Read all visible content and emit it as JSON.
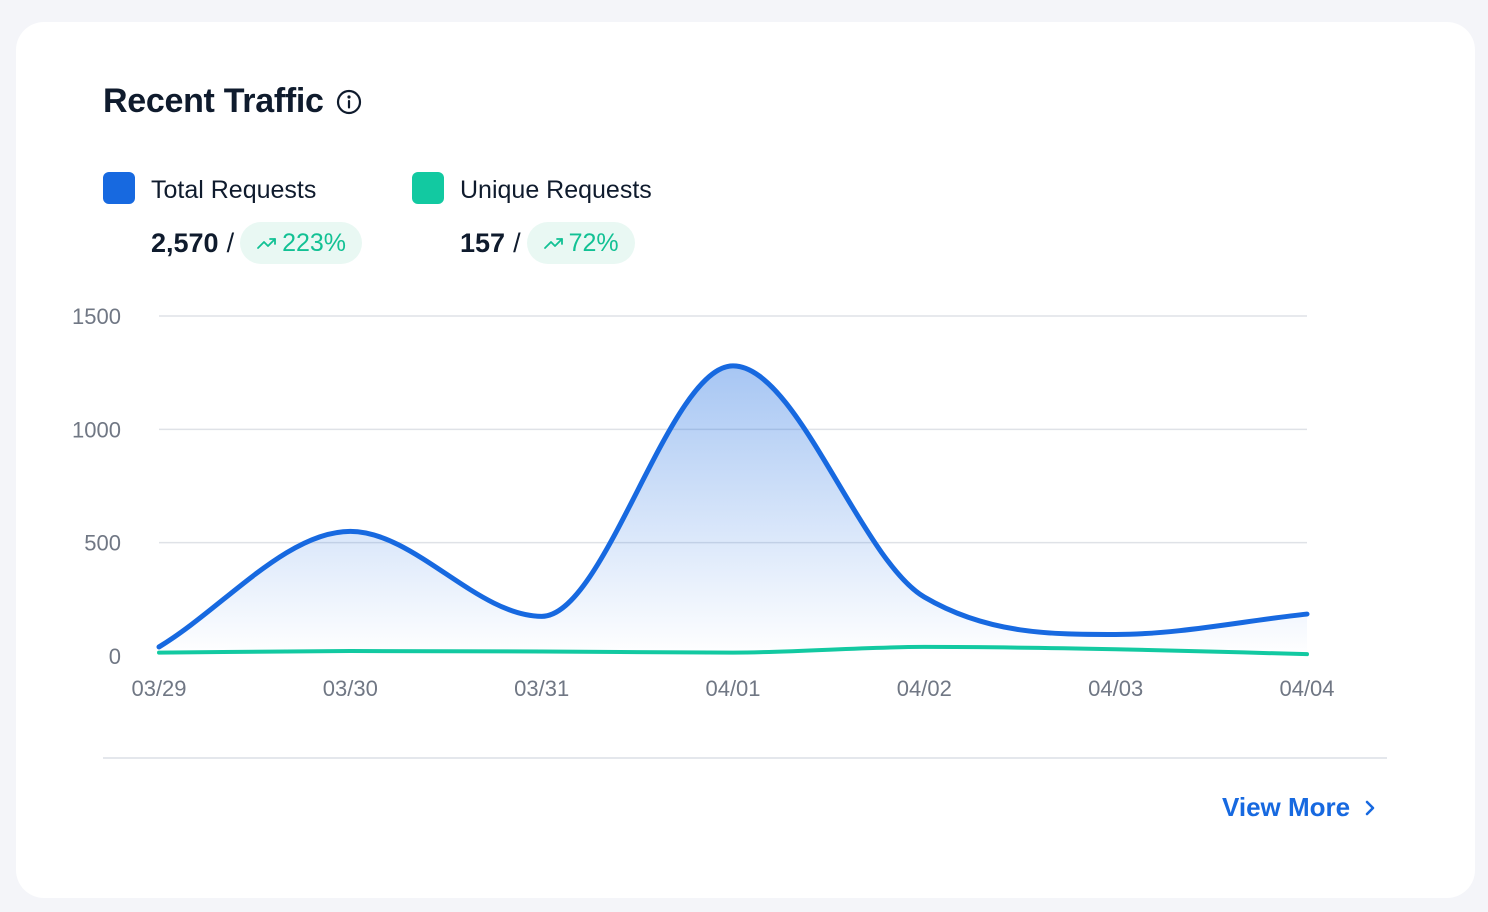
{
  "card": {
    "title": "Recent Traffic",
    "view_more_label": "View More"
  },
  "legend": [
    {
      "label": "Total Requests",
      "value": "2,570",
      "change": "223%",
      "color": "#1769e0"
    },
    {
      "label": "Unique Requests",
      "value": "157",
      "change": "72%",
      "color": "#12c9a1"
    }
  ],
  "icons": {
    "info": "info-circle-icon",
    "trend": "trending-up-icon",
    "chevron": "chevron-right-icon"
  },
  "chart_data": {
    "type": "line",
    "x": [
      "03/29",
      "03/30",
      "03/31",
      "04/01",
      "04/02",
      "04/03",
      "04/04"
    ],
    "ylim": [
      0,
      1500
    ],
    "yticks": [
      0,
      500,
      1000,
      1500
    ],
    "series": [
      {
        "name": "Total Requests",
        "color": "#1769e0",
        "area": true,
        "points": [
          [
            0,
            40
          ],
          [
            1,
            550
          ],
          [
            2,
            175
          ],
          [
            3,
            1280
          ],
          [
            4,
            260
          ],
          [
            5,
            95
          ],
          [
            6,
            185
          ]
        ]
      },
      {
        "name": "Unique Requests",
        "color": "#12c9a1",
        "area": false,
        "points": [
          [
            0,
            15
          ],
          [
            1,
            22
          ],
          [
            2,
            20
          ],
          [
            3,
            15
          ],
          [
            4,
            40
          ],
          [
            5,
            30
          ],
          [
            6,
            8
          ]
        ]
      }
    ],
    "grid": true
  }
}
